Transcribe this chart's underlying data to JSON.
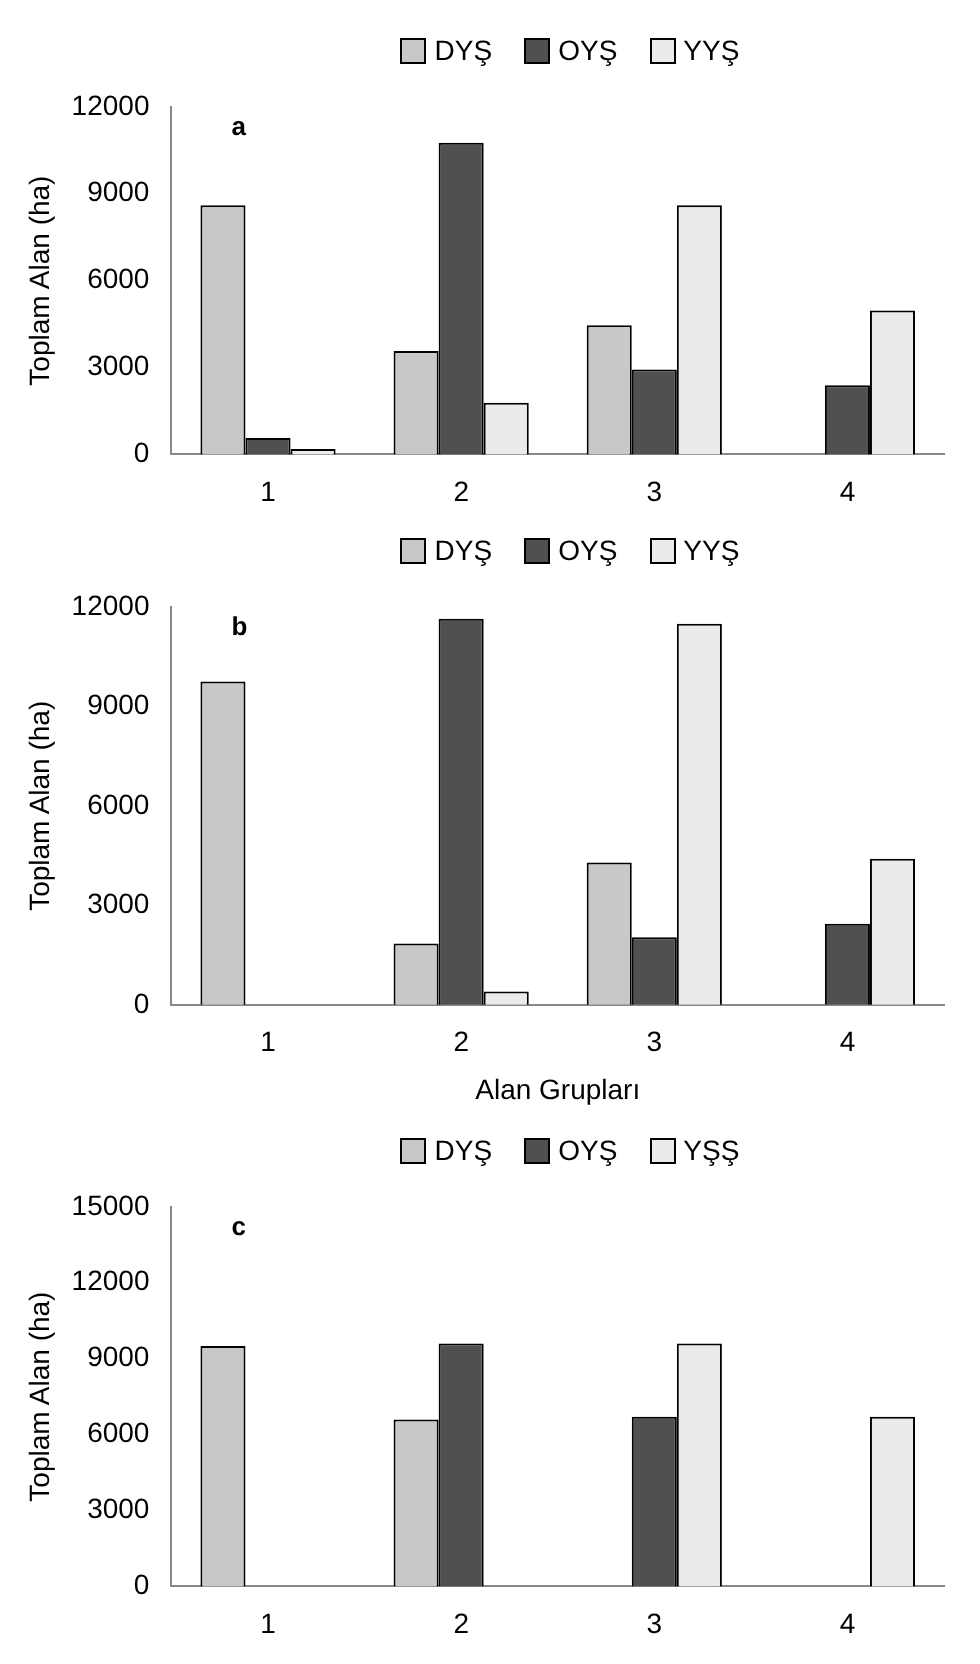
{
  "chart_data": [
    {
      "type": "bar",
      "annotations": [
        "a"
      ],
      "ylabel": "Toplam Alan (ha)",
      "categories": [
        "1",
        "2",
        "3",
        "4"
      ],
      "series": [
        {
          "name": "DYŞ",
          "color": "#c8c8c8",
          "values": [
            8600,
            3570,
            4460,
            0
          ]
        },
        {
          "name": "OYŞ",
          "color": "#505050",
          "values": [
            570,
            10760,
            2930,
            2390
          ]
        },
        {
          "name": "YYŞ",
          "color": "#ebebeb",
          "values": [
            190,
            1780,
            8600,
            4970
          ]
        }
      ],
      "ylim": [
        0,
        12000
      ],
      "yticks": [
        0,
        3000,
        6000,
        9000,
        12000
      ],
      "grid": false,
      "legend": "top"
    },
    {
      "type": "bar",
      "annotations": [
        "b"
      ],
      "ylabel": "Toplam Alan (ha)",
      "xlabel": "Alan Grupları",
      "categories": [
        "1",
        "2",
        "3",
        "4"
      ],
      "series": [
        {
          "name": "DYŞ",
          "color": "#c8c8c8",
          "values": [
            9750,
            1850,
            4290,
            0
          ]
        },
        {
          "name": "OYŞ",
          "color": "#505050",
          "values": [
            0,
            11640,
            2040,
            2440
          ]
        },
        {
          "name": "YYŞ",
          "color": "#ebebeb",
          "values": [
            0,
            400,
            11490,
            4400
          ]
        }
      ],
      "ylim": [
        0,
        12000
      ],
      "yticks": [
        0,
        3000,
        6000,
        9000,
        12000
      ],
      "grid": false,
      "legend": "top"
    },
    {
      "type": "bar",
      "annotations": [
        "c"
      ],
      "ylabel": "Toplam Alan (ha)",
      "categories": [
        "1",
        "2",
        "3",
        "4"
      ],
      "series": [
        {
          "name": "DYŞ",
          "color": "#c8c8c8",
          "values": [
            9500,
            6600,
            0,
            0
          ]
        },
        {
          "name": "OYŞ",
          "color": "#505050",
          "values": [
            0,
            9600,
            6700,
            0
          ]
        },
        {
          "name": "YŞŞ",
          "color": "#ebebeb",
          "values": [
            0,
            0,
            9600,
            6700
          ]
        }
      ],
      "ylim": [
        0,
        15000
      ],
      "yticks": [
        0,
        3000,
        6000,
        9000,
        12000,
        15000
      ],
      "grid": false,
      "legend": "top"
    }
  ]
}
